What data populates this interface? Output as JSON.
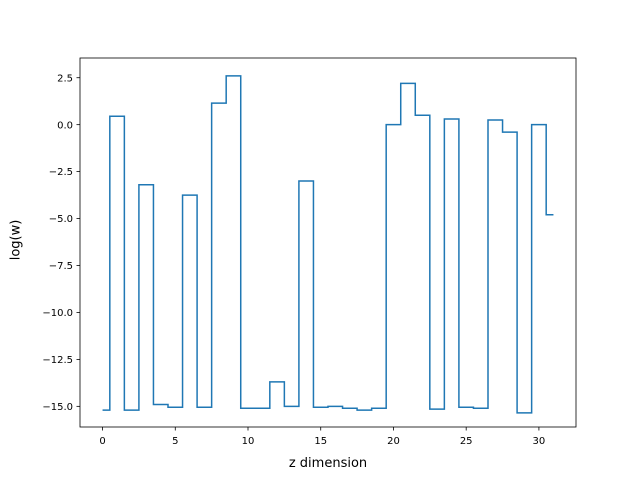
{
  "chart_data": {
    "type": "line",
    "drawstyle": "steps-mid",
    "title": "",
    "xlabel": "z dimension",
    "ylabel": "log(w)",
    "xlim": [
      -1.55,
      32.55
    ],
    "ylim": [
      -16.1,
      3.55
    ],
    "x_ticks": [
      0,
      5,
      10,
      15,
      20,
      25,
      30
    ],
    "x_tick_labels": [
      "0",
      "5",
      "10",
      "15",
      "20",
      "25",
      "30"
    ],
    "y_ticks": [
      2.5,
      0.0,
      -2.5,
      -5.0,
      -7.5,
      -10.0,
      -12.5,
      -15.0
    ],
    "y_tick_labels": [
      "2.5",
      "0.0",
      "−2.5",
      "−5.0",
      "−7.5",
      "−10.0",
      "−12.5",
      "−15.0"
    ],
    "grid": false,
    "legend": false,
    "series": [
      {
        "color": "#1f77b4",
        "x": [
          0,
          1,
          2,
          3,
          4,
          5,
          6,
          7,
          8,
          9,
          10,
          11,
          12,
          13,
          14,
          15,
          16,
          17,
          18,
          19,
          20,
          21,
          22,
          23,
          24,
          25,
          26,
          27,
          28,
          29,
          30,
          31
        ],
        "values": [
          -15.2,
          0.45,
          -15.2,
          -3.2,
          -14.9,
          -15.05,
          -3.75,
          -15.05,
          1.15,
          2.6,
          -15.1,
          -15.1,
          -13.7,
          -15.0,
          -3.0,
          -15.05,
          -15.0,
          -15.1,
          -15.2,
          -15.1,
          0.0,
          2.2,
          0.5,
          -15.15,
          0.3,
          -15.05,
          -15.1,
          0.25,
          -0.4,
          -15.35,
          0.0,
          -4.8
        ]
      }
    ]
  }
}
